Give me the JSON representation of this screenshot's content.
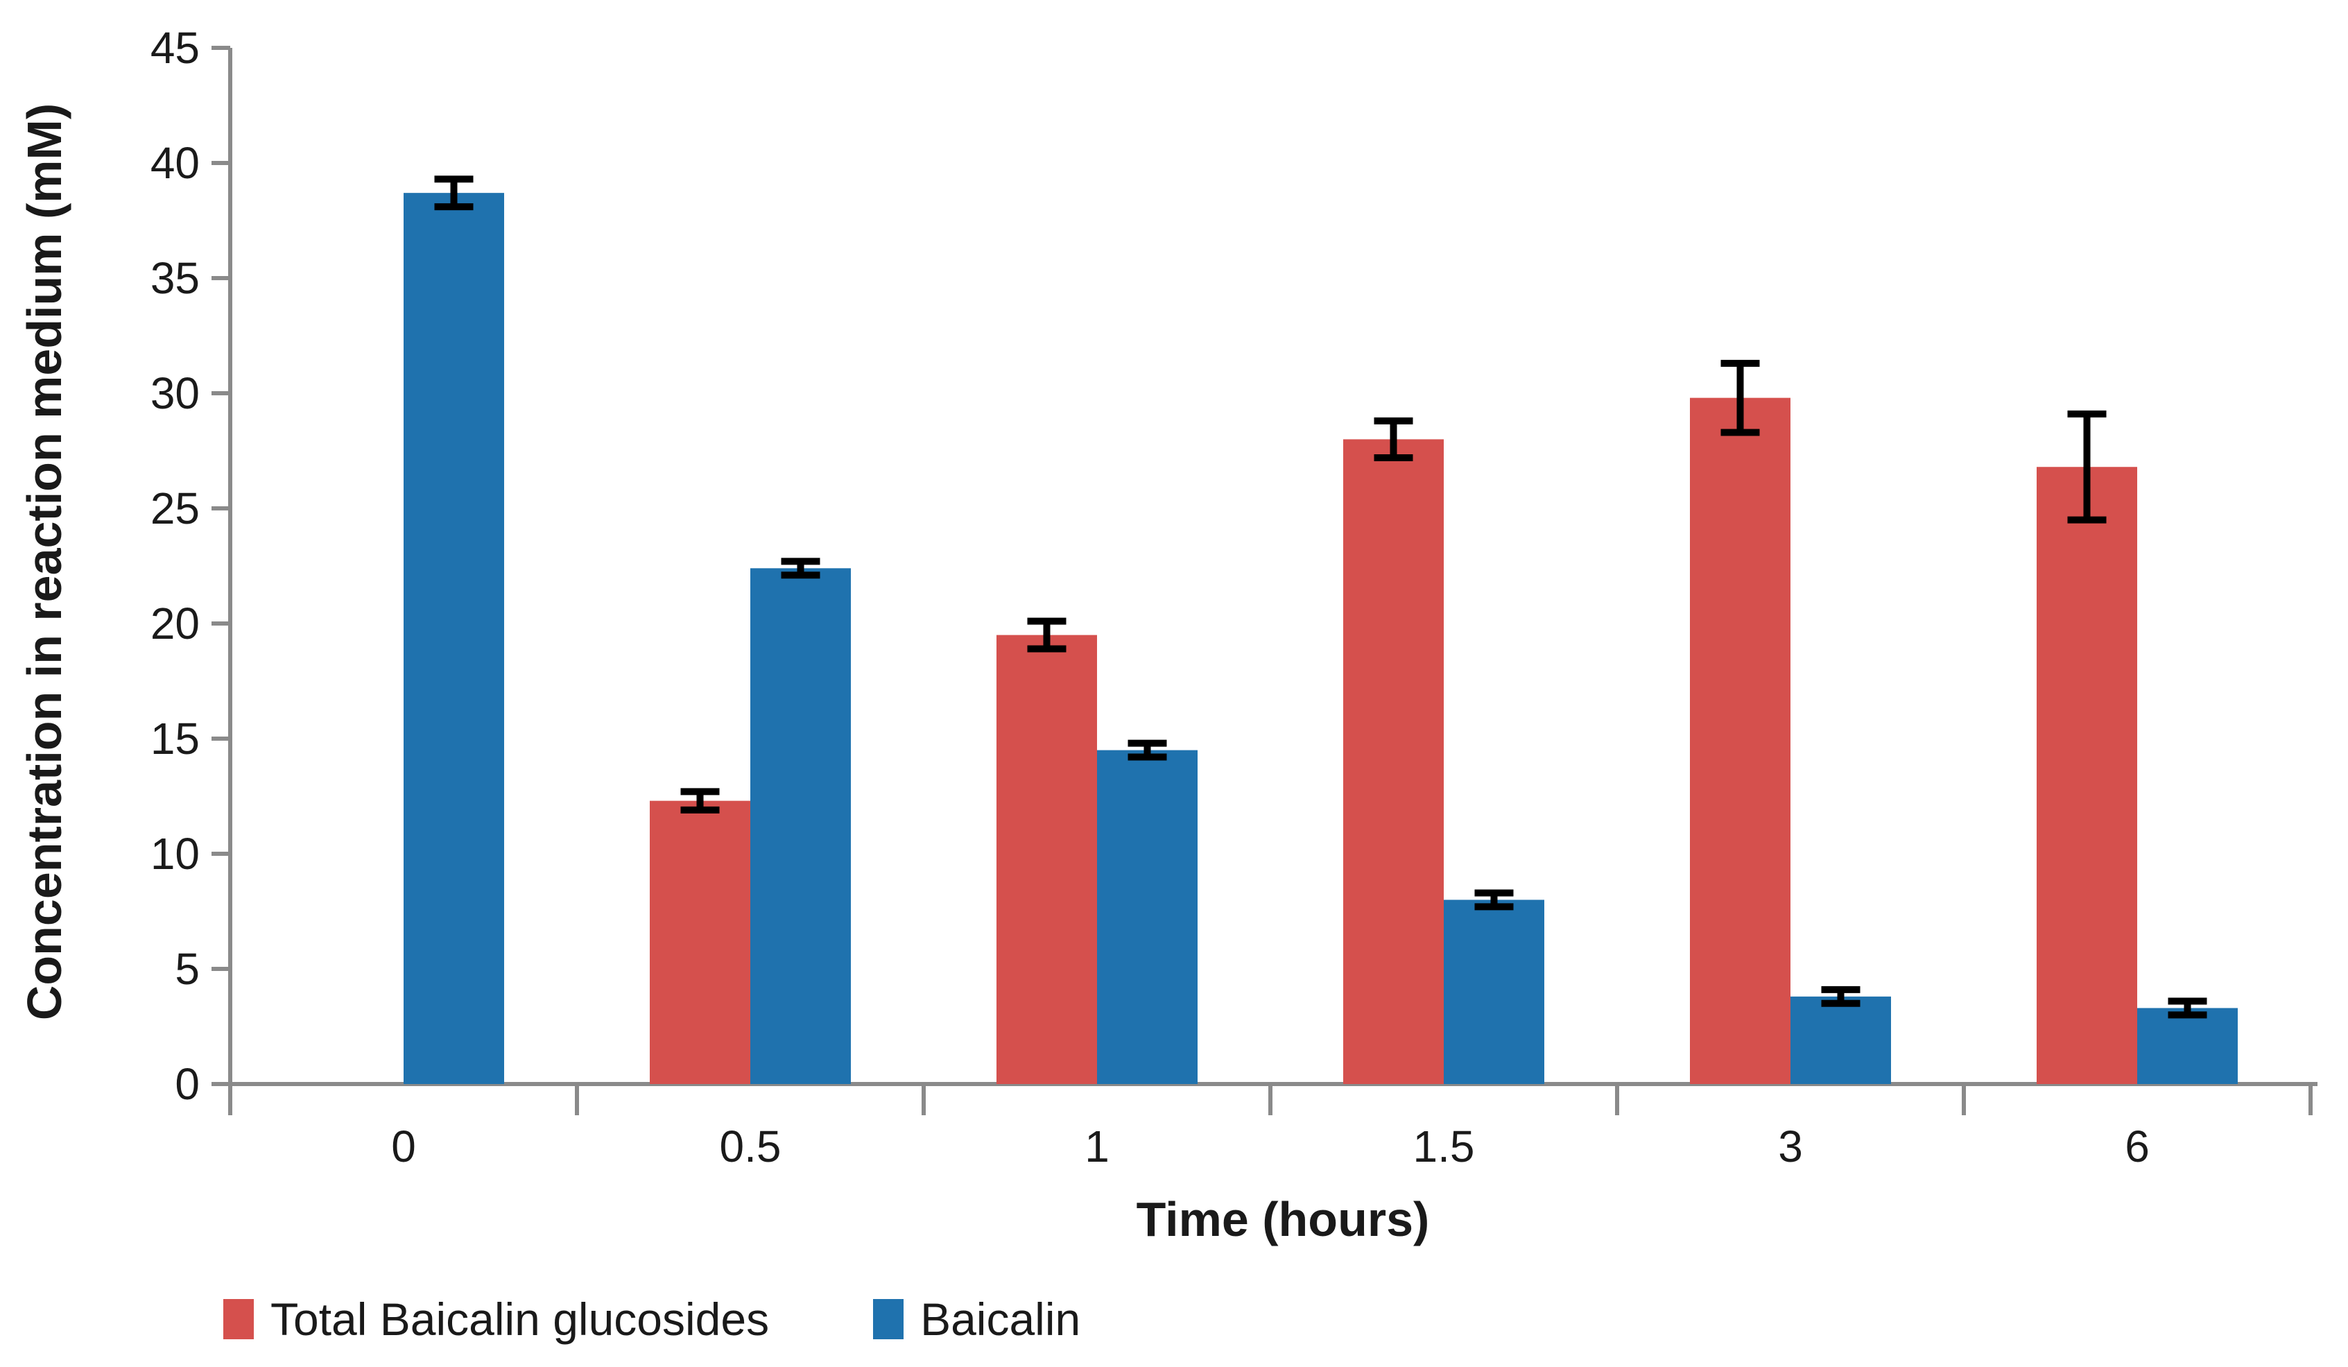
{
  "chart_data": {
    "type": "bar",
    "title": "",
    "categories": [
      "0",
      "0.5",
      "1",
      "1.5",
      "3",
      "6"
    ],
    "series": [
      {
        "name": "Total Baicalin glucosides",
        "color": "#d5504d",
        "values": [
          0,
          12.3,
          19.5,
          28.0,
          29.8,
          26.8
        ],
        "errors": [
          0,
          0.4,
          0.6,
          0.8,
          1.5,
          2.3
        ]
      },
      {
        "name": "Baicalin",
        "color": "#1f72ae",
        "values": [
          38.7,
          22.4,
          14.5,
          8.0,
          3.8,
          3.3
        ],
        "errors": [
          0.6,
          0.3,
          0.3,
          0.3,
          0.3,
          0.3
        ]
      }
    ],
    "xlabel": "Time (hours)",
    "ylabel": "Concentration in reaction medium (mM)",
    "ylim": [
      0,
      45
    ],
    "yticks": [
      0,
      5,
      10,
      15,
      20,
      25,
      30,
      35,
      40,
      45
    ],
    "grid": false,
    "legend_position": "bottom-left",
    "error_bars": true,
    "axis_color": "#8a8a8a",
    "error_bar_color": "#000000",
    "text_color": "#1a1a1a"
  }
}
